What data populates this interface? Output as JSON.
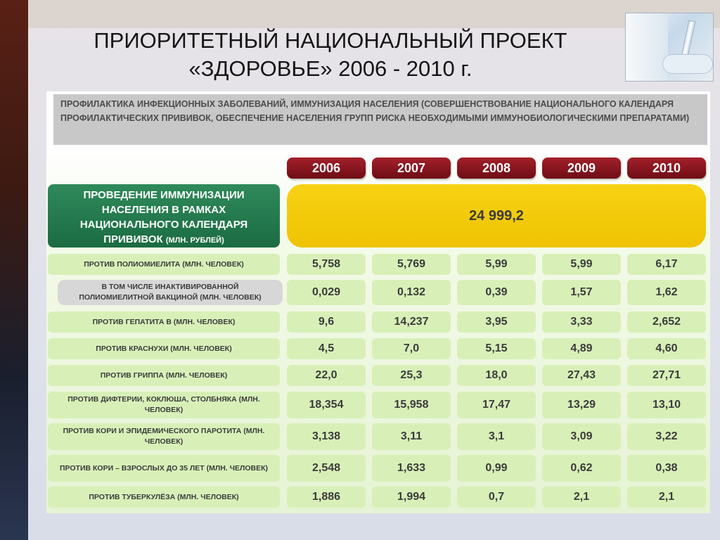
{
  "title": {
    "line1": "ПРИОРИТЕТНЫЙ НАЦИОНАЛЬНЫЙ ПРОЕКТ",
    "line2": "«ЗДОРОВЬЕ» 2006 - 2010 г."
  },
  "header_text": "ПРОФИЛАКТИКА ИНФЕКЦИОННЫХ ЗАБОЛЕВАНИЙ, ИММУНИЗАЦИЯ НАСЕЛЕНИЯ (СОВЕРШЕНСТВОВАНИЕ НАЦИОНАЛЬНОГО КАЛЕНДАРЯ ПРОФИЛАКТИЧЕСКИХ ПРИВИВОК, ОБЕСПЕЧЕНИЕ НАСЕЛЕНИЯ ГРУПП РИСКА НЕОБХОДИМЫМИ ИММУНОБИОЛОГИЧЕСКИМИ ПРЕПАРАТАМИ)",
  "years": [
    "2006",
    "2007",
    "2008",
    "2009",
    "2010"
  ],
  "summary": {
    "label": "ПРОВЕДЕНИЕ ИММУНИЗАЦИИ НАСЕЛЕНИЯ В РАМКАХ НАЦИОНАЛЬНОГО КАЛЕНДАРЯ ПРИВИВОК",
    "unit": "(МЛН. РУБЛЕЙ)",
    "value": "24 999,2"
  },
  "rows": [
    {
      "label": "ПРОТИВ ПОЛИОМИЕЛИТА (МЛН. ЧЕЛОВЕК)",
      "values": [
        "5,758",
        "5,769",
        "5,99",
        "5,99",
        "6,17"
      ]
    },
    {
      "label": "В ТОМ ЧИСЛЕ ИНАКТИВИРОВАННОЙ ПОЛИОМИЕЛИТНОЙ ВАКЦИНОЙ (МЛН. ЧЕЛОВЕК)",
      "values": [
        "0,029",
        "0,132",
        "0,39",
        "1,57",
        "1,62"
      ]
    },
    {
      "label": "ПРОТИВ ГЕПАТИТА В (МЛН. ЧЕЛОВЕК)",
      "values": [
        "9,6",
        "14,237",
        "3,95",
        "3,33",
        "2,652"
      ]
    },
    {
      "label": "ПРОТИВ КРАСНУХИ (МЛН. ЧЕЛОВЕК)",
      "values": [
        "4,5",
        "7,0",
        "5,15",
        "4,89",
        "4,60"
      ]
    },
    {
      "label": "ПРОТИВ ГРИППА (МЛН. ЧЕЛОВЕК)",
      "values": [
        "22,0",
        "25,3",
        "18,0",
        "27,43",
        "27,71"
      ]
    },
    {
      "label": "ПРОТИВ ДИФТЕРИИ, КОКЛЮША, СТОЛБНЯКА (МЛН. ЧЕЛОВЕК)",
      "values": [
        "18,354",
        "15,958",
        "17,47",
        "13,29",
        "13,10"
      ]
    },
    {
      "label": "ПРОТИВ КОРИ И ЭПИДЕМИЧЕСКОГО ПАРОТИТА (МЛН. ЧЕЛОВЕК)",
      "values": [
        "3,138",
        "3,11",
        "3,1",
        "3,09",
        "3,22"
      ]
    },
    {
      "label": "ПРОТИВ КОРИ – ВЗРОСЛЫХ ДО 35 ЛЕТ (МЛН. ЧЕЛОВЕК)",
      "values": [
        "2,548",
        "1,633",
        "0,99",
        "0,62",
        "0,38"
      ]
    },
    {
      "label": "ПРОТИВ ТУБЕРКУЛЁЗА (МЛН. ЧЕЛОВЕК)",
      "values": [
        "1,886",
        "1,994",
        "0,7",
        "2,1",
        "2,1"
      ]
    }
  ],
  "colors": {
    "year_badge": "#8b1520",
    "summary_label": "#237a4e",
    "summary_value": "#f3c90a",
    "row_cell": "#d8f0b8",
    "sub_row_label": "#d7d7d7"
  }
}
